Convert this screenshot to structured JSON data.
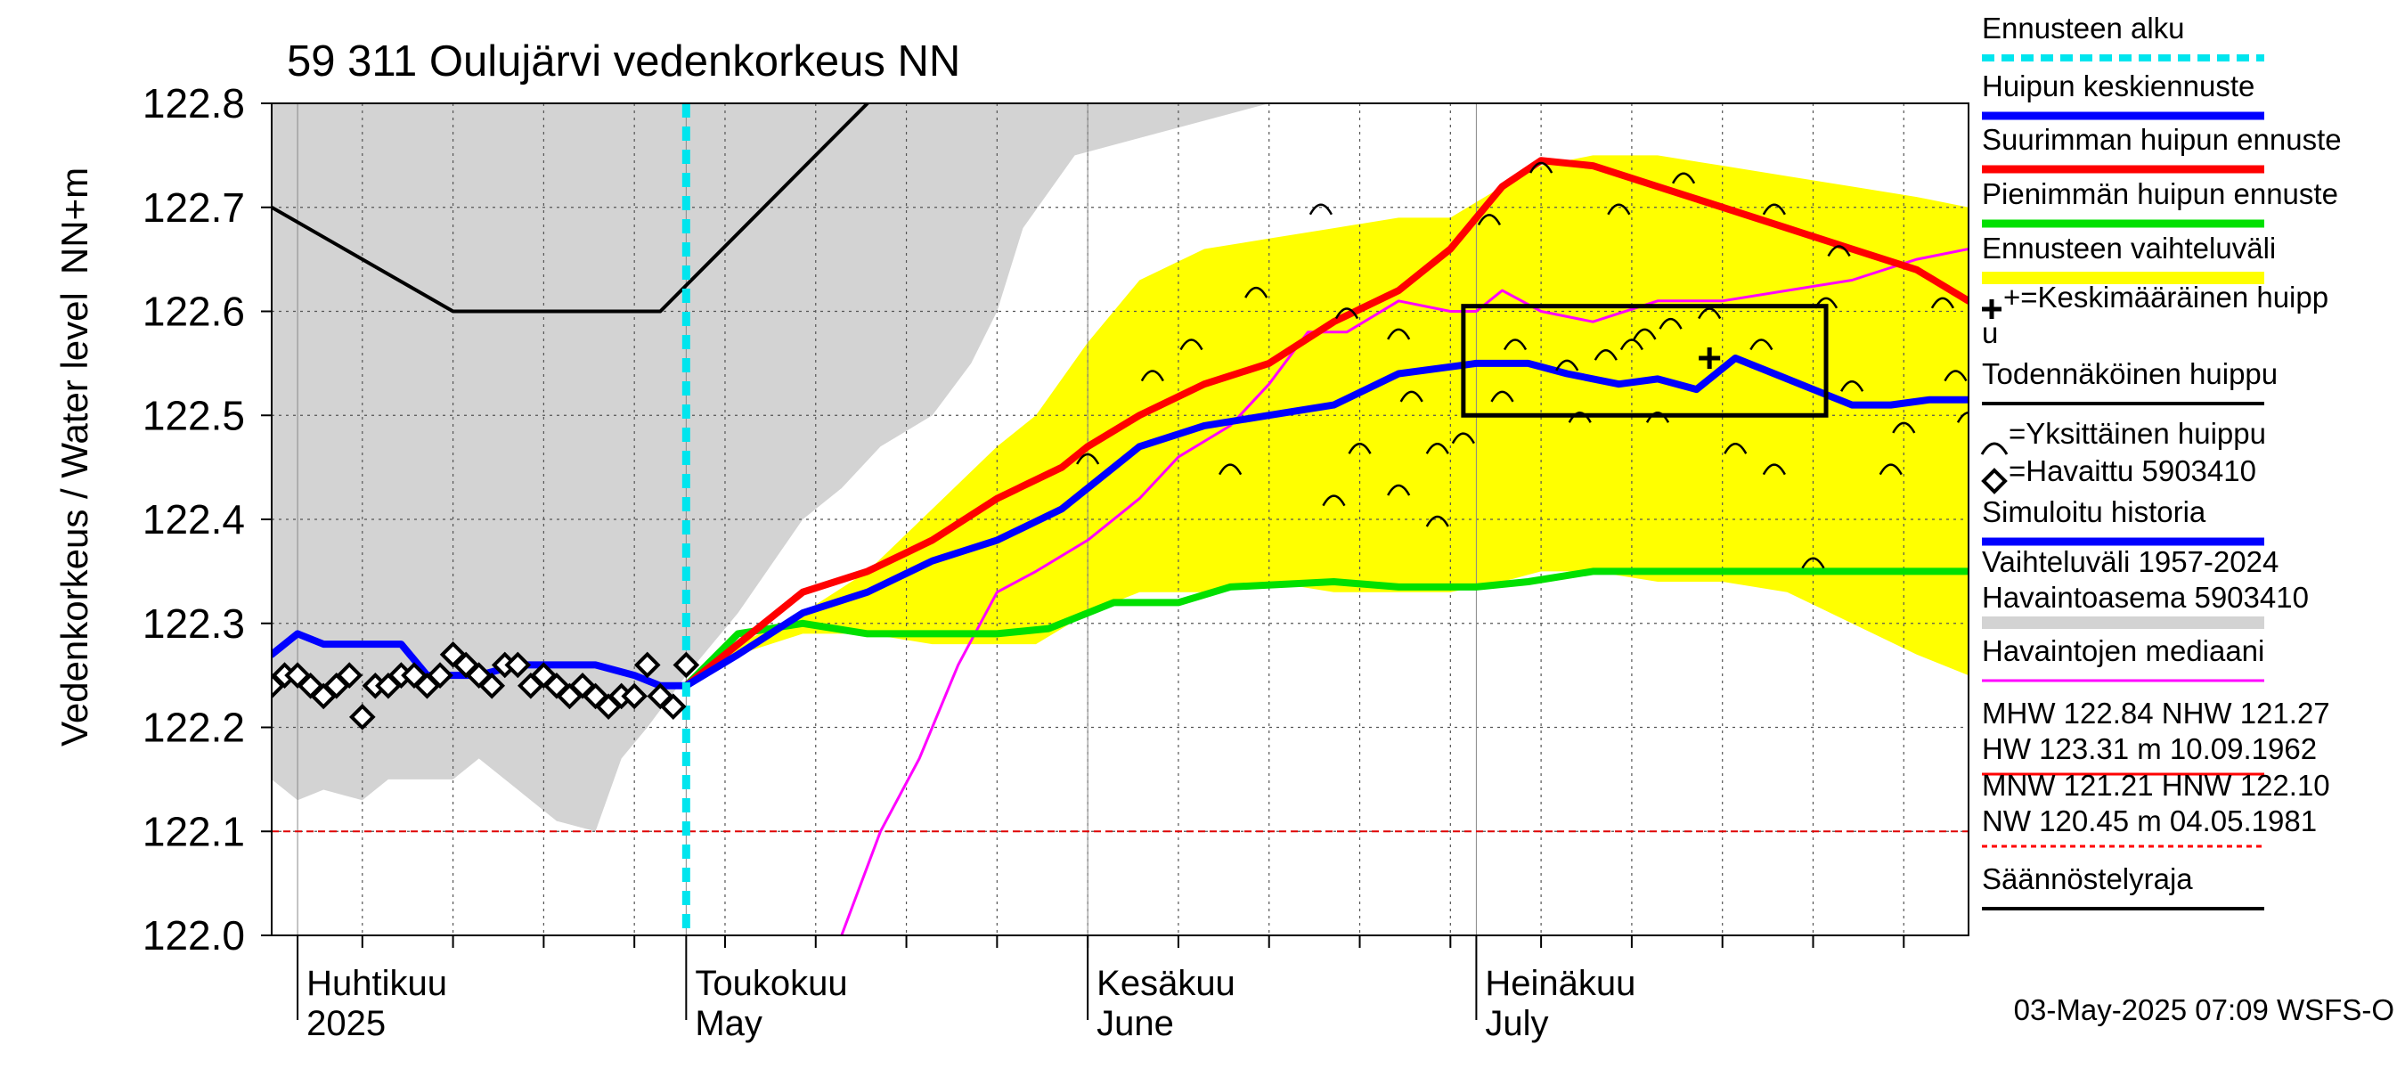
{
  "chart_data": {
    "type": "line",
    "title": "59 311 Oulujärvi vedenkorkeus NN",
    "ylabel": "Vedenkorkeus / Water level",
    "yunit": "NN+m",
    "ylim": [
      122.0,
      122.8
    ],
    "yticks": [
      "122.0",
      "122.1",
      "122.2",
      "122.3",
      "122.4",
      "122.5",
      "122.6",
      "122.7",
      "122.8"
    ],
    "x_start": "2025-03-30",
    "x_end": "2025-08-08",
    "month_labels": [
      {
        "date": "2025-04-01",
        "fi": "Huhtikuu",
        "en": "2025"
      },
      {
        "date": "2025-05-01",
        "fi": "Toukokuu",
        "en": "May"
      },
      {
        "date": "2025-06-01",
        "fi": "Kesäkuu",
        "en": "June"
      },
      {
        "date": "2025-07-01",
        "fi": "Heinäkuu",
        "en": "July"
      }
    ],
    "forecast_start": "2025-05-01",
    "regulation_limit": 122.1,
    "series": [
      {
        "name": "Vaihteluväli 1957-2024 Havaintoasema 5903410",
        "kind": "band",
        "color": "#d3d3d3",
        "x": [
          "2025-03-30",
          "2025-04-01",
          "2025-04-03",
          "2025-04-06",
          "2025-04-08",
          "2025-04-11",
          "2025-04-13",
          "2025-04-15",
          "2025-04-18",
          "2025-04-21",
          "2025-04-24",
          "2025-04-26",
          "2025-04-28",
          "2025-05-01",
          "2025-05-05",
          "2025-05-10",
          "2025-05-13",
          "2025-05-16",
          "2025-05-20",
          "2025-05-23",
          "2025-05-25",
          "2025-05-27",
          "2025-05-31",
          "2025-06-15",
          "2025-07-01",
          "2025-07-15",
          "2025-07-25",
          "2025-08-01",
          "2025-08-08"
        ],
        "low": [
          122.15,
          122.13,
          122.14,
          122.13,
          122.15,
          122.15,
          122.15,
          122.17,
          122.14,
          122.11,
          122.1,
          122.17,
          122.2,
          122.25,
          122.31,
          122.4,
          122.43,
          122.47,
          122.5,
          122.55,
          122.6,
          122.68,
          122.75,
          122.8,
          122.8,
          122.8,
          122.8,
          122.8,
          122.8
        ],
        "high": [
          122.8,
          122.8,
          122.8,
          122.8,
          122.8,
          122.8,
          122.8,
          122.8,
          122.8,
          122.8,
          122.8,
          122.8,
          122.8,
          122.8,
          122.8,
          122.8,
          122.8,
          122.8,
          122.8,
          122.8,
          122.8,
          122.8,
          122.8,
          122.8,
          122.8,
          122.8,
          122.8,
          122.8,
          122.8
        ]
      },
      {
        "name": "Ennusteen vaihteluväli",
        "kind": "band",
        "color": "#ffff00",
        "x": [
          "2025-05-01",
          "2025-05-05",
          "2025-05-10",
          "2025-05-15",
          "2025-05-20",
          "2025-05-25",
          "2025-05-28",
          "2025-06-01",
          "2025-06-05",
          "2025-06-10",
          "2025-06-15",
          "2025-06-20",
          "2025-06-25",
          "2025-06-29",
          "2025-07-03",
          "2025-07-06",
          "2025-07-10",
          "2025-07-15",
          "2025-07-20",
          "2025-07-25",
          "2025-07-30",
          "2025-08-04",
          "2025-08-08"
        ],
        "low": [
          122.24,
          122.27,
          122.29,
          122.29,
          122.28,
          122.28,
          122.28,
          122.31,
          122.33,
          122.33,
          122.34,
          122.33,
          122.33,
          122.33,
          122.34,
          122.35,
          122.35,
          122.34,
          122.34,
          122.33,
          122.3,
          122.27,
          122.25
        ],
        "high": [
          122.24,
          122.28,
          122.31,
          122.35,
          122.41,
          122.47,
          122.5,
          122.57,
          122.63,
          122.66,
          122.67,
          122.68,
          122.69,
          122.69,
          122.72,
          122.74,
          122.75,
          122.75,
          122.74,
          122.73,
          122.72,
          122.71,
          122.7
        ]
      },
      {
        "name": "Havaintojen mediaani",
        "kind": "line",
        "color": "#ff00ff",
        "x": [
          "2025-05-13",
          "2025-05-16",
          "2025-05-19",
          "2025-05-22",
          "2025-05-25",
          "2025-05-28",
          "2025-06-01",
          "2025-06-05",
          "2025-06-08",
          "2025-06-12",
          "2025-06-15",
          "2025-06-18",
          "2025-06-21",
          "2025-06-25",
          "2025-06-29",
          "2025-07-01",
          "2025-07-03",
          "2025-07-06",
          "2025-07-10",
          "2025-07-15",
          "2025-07-20",
          "2025-07-25",
          "2025-07-30",
          "2025-08-04",
          "2025-08-08"
        ],
        "values": [
          122.0,
          122.1,
          122.17,
          122.26,
          122.33,
          122.35,
          122.38,
          122.42,
          122.46,
          122.49,
          122.53,
          122.58,
          122.58,
          122.61,
          122.6,
          122.6,
          122.62,
          122.6,
          122.59,
          122.61,
          122.61,
          122.62,
          122.63,
          122.65,
          122.66
        ]
      },
      {
        "name": "Suurimman huipun ennuste",
        "kind": "line",
        "color": "#ff0000",
        "x": [
          "2025-05-01",
          "2025-05-05",
          "2025-05-10",
          "2025-05-15",
          "2025-05-20",
          "2025-05-25",
          "2025-05-30",
          "2025-06-01",
          "2025-06-05",
          "2025-06-10",
          "2025-06-15",
          "2025-06-20",
          "2025-06-25",
          "2025-06-29",
          "2025-07-03",
          "2025-07-06",
          "2025-07-10",
          "2025-07-15",
          "2025-07-20",
          "2025-07-25",
          "2025-07-30",
          "2025-08-04",
          "2025-08-08"
        ],
        "values": [
          122.24,
          122.28,
          122.33,
          122.35,
          122.38,
          122.42,
          122.45,
          122.47,
          122.5,
          122.53,
          122.55,
          122.59,
          122.62,
          122.66,
          122.72,
          122.745,
          122.74,
          122.72,
          122.7,
          122.68,
          122.66,
          122.64,
          122.61
        ]
      },
      {
        "name": "Huipun keskiennuste",
        "kind": "line",
        "color": "#0000ff",
        "x": [
          "2025-05-01",
          "2025-05-05",
          "2025-05-10",
          "2025-05-15",
          "2025-05-20",
          "2025-05-25",
          "2025-05-30",
          "2025-06-05",
          "2025-06-10",
          "2025-06-15",
          "2025-06-20",
          "2025-06-25",
          "2025-07-01",
          "2025-07-05",
          "2025-07-08",
          "2025-07-12",
          "2025-07-15",
          "2025-07-18",
          "2025-07-21",
          "2025-07-24",
          "2025-07-27",
          "2025-07-30",
          "2025-08-02",
          "2025-08-05",
          "2025-08-08"
        ],
        "values": [
          122.24,
          122.27,
          122.31,
          122.33,
          122.36,
          122.38,
          122.41,
          122.47,
          122.49,
          122.5,
          122.51,
          122.54,
          122.55,
          122.55,
          122.54,
          122.53,
          122.535,
          122.525,
          122.555,
          122.54,
          122.525,
          122.51,
          122.51,
          122.515,
          122.515
        ]
      },
      {
        "name": "Pienimmän huipun ennuste",
        "kind": "line",
        "color": "#00e000",
        "x": [
          "2025-05-01",
          "2025-05-05",
          "2025-05-10",
          "2025-05-15",
          "2025-05-20",
          "2025-05-25",
          "2025-05-29",
          "2025-06-03",
          "2025-06-08",
          "2025-06-12",
          "2025-06-20",
          "2025-06-25",
          "2025-07-01",
          "2025-07-05",
          "2025-07-10",
          "2025-07-20",
          "2025-07-30",
          "2025-08-08"
        ],
        "values": [
          122.24,
          122.29,
          122.3,
          122.29,
          122.29,
          122.29,
          122.295,
          122.32,
          122.32,
          122.335,
          122.34,
          122.335,
          122.335,
          122.34,
          122.35,
          122.35,
          122.35,
          122.35
        ]
      },
      {
        "name": "Simuloitu historia",
        "kind": "line",
        "color": "#0000ff",
        "x": [
          "2025-03-30",
          "2025-04-01",
          "2025-04-03",
          "2025-04-06",
          "2025-04-09",
          "2025-04-11",
          "2025-04-13",
          "2025-04-15",
          "2025-04-18",
          "2025-04-21",
          "2025-04-24",
          "2025-04-27",
          "2025-04-29",
          "2025-05-01"
        ],
        "values": [
          122.27,
          122.29,
          122.28,
          122.28,
          122.28,
          122.25,
          122.25,
          122.25,
          122.26,
          122.26,
          122.26,
          122.25,
          122.24,
          122.24
        ]
      },
      {
        "name": "Todennäköinen huippu",
        "kind": "line",
        "color": "#000000",
        "x": [
          "2025-03-30",
          "2025-04-13",
          "2025-04-29",
          "2025-05-15"
        ],
        "values": [
          122.7,
          122.6,
          122.6,
          122.8
        ]
      },
      {
        "name": "Havaittu 5903410",
        "kind": "scatter",
        "marker": "diamond",
        "color": "#000000",
        "x": [
          "2025-03-30",
          "2025-03-31",
          "2025-04-01",
          "2025-04-02",
          "2025-04-03",
          "2025-04-04",
          "2025-04-05",
          "2025-04-06",
          "2025-04-07",
          "2025-04-08",
          "2025-04-09",
          "2025-04-10",
          "2025-04-11",
          "2025-04-12",
          "2025-04-13",
          "2025-04-14",
          "2025-04-15",
          "2025-04-16",
          "2025-04-17",
          "2025-04-18",
          "2025-04-19",
          "2025-04-20",
          "2025-04-21",
          "2025-04-22",
          "2025-04-23",
          "2025-04-24",
          "2025-04-25",
          "2025-04-26",
          "2025-04-27",
          "2025-04-28",
          "2025-04-29",
          "2025-04-30",
          "2025-05-01"
        ],
        "values": [
          122.24,
          122.25,
          122.25,
          122.24,
          122.23,
          122.24,
          122.25,
          122.21,
          122.24,
          122.24,
          122.25,
          122.25,
          122.24,
          122.25,
          122.27,
          122.26,
          122.25,
          122.24,
          122.26,
          122.26,
          122.24,
          122.25,
          122.24,
          122.23,
          122.24,
          122.23,
          122.22,
          122.23,
          122.23,
          122.26,
          122.23,
          122.22,
          122.26
        ]
      },
      {
        "name": "Yksittäinen huippu",
        "kind": "scatter",
        "marker": "arc",
        "color": "#000000",
        "x": [
          "2025-06-01",
          "2025-06-06",
          "2025-06-09",
          "2025-06-12",
          "2025-06-20",
          "2025-06-22",
          "2025-06-25",
          "2025-06-28",
          "2025-06-30",
          "2025-07-03",
          "2025-07-04",
          "2025-07-06",
          "2025-07-11",
          "2025-07-12",
          "2025-07-14",
          "2025-07-17",
          "2025-07-21",
          "2025-07-23",
          "2025-07-24",
          "2025-07-27",
          "2025-07-29",
          "2025-07-30",
          "2025-08-03",
          "2025-08-06",
          "2025-08-07",
          "2025-08-08",
          "2025-06-14",
          "2025-06-19",
          "2025-06-25",
          "2025-07-08",
          "2025-07-15",
          "2025-07-19",
          "2025-07-28",
          "2025-06-21",
          "2025-06-26",
          "2025-07-13",
          "2025-07-16",
          "2025-08-02",
          "2025-06-28",
          "2025-07-02",
          "2025-07-09",
          "2025-07-24"
        ],
        "values": [
          122.46,
          122.54,
          122.57,
          122.45,
          122.42,
          122.47,
          122.43,
          122.4,
          122.48,
          122.52,
          122.57,
          122.74,
          122.56,
          122.7,
          122.58,
          122.73,
          122.47,
          122.57,
          122.7,
          122.36,
          122.66,
          122.53,
          122.49,
          122.61,
          122.54,
          122.5,
          122.62,
          122.7,
          122.58,
          122.55,
          122.5,
          122.6,
          122.61,
          122.6,
          122.52,
          122.57,
          122.59,
          122.45,
          122.47,
          122.69,
          122.5,
          122.45
        ]
      },
      {
        "name": "Keskimääräinen huippu",
        "kind": "scatter",
        "marker": "plus",
        "color": "#000000",
        "x": [
          "2025-07-19"
        ],
        "values": [
          122.555
        ]
      },
      {
        "name": "Säännöstelyraja",
        "kind": "box",
        "color": "#000000",
        "x": [
          "2025-06-30",
          "2025-07-28"
        ],
        "values": [
          122.5,
          122.605
        ]
      }
    ],
    "legend": [
      {
        "label": "Ennusteen alku",
        "style": "dashed",
        "color": "#00e5ee"
      },
      {
        "label": "Huipun keskiennuste",
        "style": "thick",
        "color": "#0000ff"
      },
      {
        "label": "Suurimman huipun ennuste",
        "style": "thick",
        "color": "#ff0000"
      },
      {
        "label": "Pienimmän huipun ennuste",
        "style": "thick",
        "color": "#00e000"
      },
      {
        "label": "Ennusteen vaihteluväli",
        "style": "band",
        "color": "#ffff00"
      },
      {
        "label": "+=Keskimääräinen huipp",
        "label2": "u",
        "style": "none"
      },
      {
        "label": "Todennäköinen huippu",
        "style": "thin",
        "color": "#000000"
      },
      {
        "label": "=Yksittäinen huippu",
        "style": "none"
      },
      {
        "label": "=Havaittu 5903410",
        "style": "none"
      },
      {
        "label": "Simuloitu historia",
        "style": "thick",
        "color": "#0000ff"
      },
      {
        "label": "Vaihteluväli 1957-2024",
        "label2": " Havaintoasema 5903410",
        "style": "band",
        "color": "#d3d3d3"
      },
      {
        "label": "Havaintojen mediaani",
        "style": "thin",
        "color": "#ff00ff"
      },
      {
        "label": "MHW 122.84 NHW 121.27",
        "label2": "HW 123.31 m 10.09.1962",
        "style": "thin",
        "color": "#ff0000"
      },
      {
        "label": "MNW 121.21 HNW 122.10",
        "label2": "NW 120.45 m 04.05.1981",
        "style": "dashed-red",
        "color": "#ff0000"
      },
      {
        "label": "Säännöstelyraja",
        "style": "thin",
        "color": "#000000"
      }
    ],
    "footer": "03-May-2025 07:09 WSFS-O"
  }
}
